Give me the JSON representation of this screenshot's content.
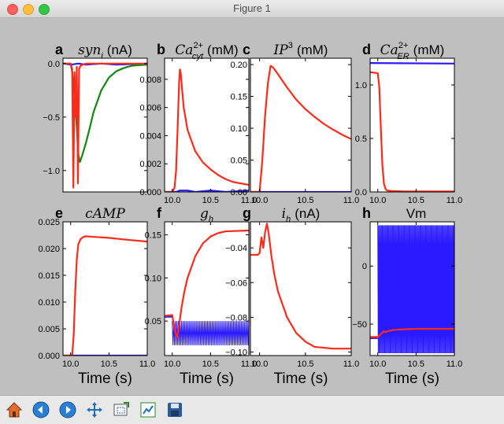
{
  "window": {
    "title": "Figure 1"
  },
  "toolbar": {
    "buttons": [
      {
        "icon": "home-icon"
      },
      {
        "icon": "back-icon"
      },
      {
        "icon": "forward-icon"
      },
      {
        "icon": "pan-icon"
      },
      {
        "icon": "zoom-icon"
      },
      {
        "icon": "subplots-icon"
      },
      {
        "icon": "save-icon"
      }
    ]
  },
  "colors": {
    "red": "#ff2a1a",
    "blue": "#2a1aff",
    "green": "#118811",
    "figure_bg": "#bfbfbf"
  },
  "chart_data": [
    {
      "type": "line",
      "panel_letter": "a",
      "title_math": [
        "syn",
        "i",
        ""
      ],
      "title_unit": "(nA)",
      "xlim": [
        9.9,
        11.0
      ],
      "ylim": [
        -1.2,
        0.05
      ],
      "xticks": [],
      "xtick_labels": [],
      "yticks": [
        0.0,
        -0.5,
        -1.0
      ],
      "ytick_labels": [
        "0.0",
        "−0.5",
        "−1.0"
      ],
      "xlabel": "",
      "series": [
        {
          "color": "blue",
          "x": [
            9.9,
            10.0,
            10.1,
            10.2,
            10.4,
            10.6,
            11.0
          ],
          "y": [
            0.0,
            -0.01,
            0.0,
            -0.01,
            0.0,
            -0.01,
            0.0
          ]
        },
        {
          "color": "green",
          "x": [
            9.9,
            10.0,
            10.02,
            10.05,
            10.08,
            10.1,
            10.12,
            10.15,
            10.2,
            10.25,
            10.3,
            10.4,
            10.5,
            10.6,
            10.7,
            10.8,
            11.0
          ],
          "y": [
            0.0,
            0.0,
            -0.08,
            -0.3,
            -0.6,
            -0.85,
            -0.92,
            -0.86,
            -0.74,
            -0.6,
            -0.45,
            -0.25,
            -0.13,
            -0.07,
            -0.04,
            -0.02,
            -0.01
          ]
        },
        {
          "color": "red",
          "x": [
            9.9,
            10.0,
            10.02,
            10.035,
            10.05,
            10.065,
            10.08,
            10.095,
            10.11,
            10.13,
            10.16,
            10.2,
            10.3,
            10.4,
            10.6,
            11.0
          ],
          "y": [
            0.0,
            0.0,
            -0.05,
            -1.16,
            -0.08,
            -0.5,
            -0.03,
            -1.12,
            -0.05,
            -0.02,
            -0.01,
            0.0,
            0.0,
            0.0,
            0.0,
            0.0
          ]
        }
      ]
    },
    {
      "type": "line",
      "panel_letter": "b",
      "title_math": [
        "Ca",
        "cyt",
        "2+"
      ],
      "title_unit": "(mM)",
      "xlim": [
        9.9,
        11.0
      ],
      "ylim": [
        0.0,
        0.0095
      ],
      "xticks": [
        10.0,
        10.5,
        11.0
      ],
      "xtick_labels": [
        "10.0",
        "10.5",
        "11.0"
      ],
      "yticks": [
        0.0,
        0.002,
        0.004,
        0.006,
        0.008
      ],
      "ytick_labels": [
        "0.000",
        "0.002",
        "0.004",
        "0.006",
        "0.008"
      ],
      "xlabel": "",
      "series": [
        {
          "color": "blue",
          "x": [
            9.9,
            10.05,
            10.1,
            10.2,
            10.3,
            10.5,
            10.7,
            11.0
          ],
          "y": [
            0.0,
            0.0,
            0.0001,
            0.0001,
            0.0,
            0.0001,
            0.0,
            0.0001
          ]
        },
        {
          "color": "red",
          "x": [
            9.9,
            10.0,
            10.03,
            10.05,
            10.07,
            10.09,
            10.1,
            10.11,
            10.13,
            10.15,
            10.2,
            10.3,
            10.4,
            10.5,
            10.6,
            10.7,
            10.8,
            11.0
          ],
          "y": [
            0.0,
            0.0,
            0.0003,
            0.0015,
            0.0045,
            0.0078,
            0.0087,
            0.0085,
            0.0072,
            0.006,
            0.0044,
            0.0029,
            0.0021,
            0.0016,
            0.0012,
            0.0009,
            0.0007,
            0.0005
          ]
        }
      ]
    },
    {
      "type": "line",
      "panel_letter": "c",
      "title_math": [
        "IP",
        "",
        "3"
      ],
      "title_unit": "(mM)",
      "xlim": [
        9.9,
        11.0
      ],
      "ylim": [
        0.0,
        0.21
      ],
      "xticks": [
        10.0,
        10.5,
        11.0
      ],
      "xtick_labels": [
        "10.0",
        "10.5",
        "11.0"
      ],
      "yticks": [
        0.0,
        0.05,
        0.1,
        0.15,
        0.2
      ],
      "ytick_labels": [
        "0.00",
        "0.05",
        "0.10",
        "0.15",
        "0.20"
      ],
      "xlabel": "",
      "series": [
        {
          "color": "blue",
          "x": [
            9.9,
            11.0
          ],
          "y": [
            0.0,
            0.0
          ]
        },
        {
          "color": "red",
          "x": [
            9.9,
            10.0,
            10.03,
            10.06,
            10.09,
            10.12,
            10.15,
            10.2,
            10.3,
            10.4,
            10.5,
            10.6,
            10.7,
            10.8,
            10.9,
            11.0
          ],
          "y": [
            0.0,
            0.0,
            0.05,
            0.12,
            0.17,
            0.198,
            0.195,
            0.185,
            0.164,
            0.145,
            0.13,
            0.118,
            0.107,
            0.098,
            0.09,
            0.083
          ]
        }
      ]
    },
    {
      "type": "line",
      "panel_letter": "d",
      "title_math": [
        "Ca",
        "ER",
        "2+"
      ],
      "title_unit": "(mM)",
      "xlim": [
        9.9,
        11.0
      ],
      "ylim": [
        0.0,
        1.25
      ],
      "xticks": [
        10.0,
        10.5,
        11.0
      ],
      "xtick_labels": [
        "10.0",
        "10.5",
        "11.0"
      ],
      "yticks": [
        0.0,
        0.5,
        1.0
      ],
      "ytick_labels": [
        "0.0",
        "0.5",
        "1.0"
      ],
      "xlabel": "",
      "series": [
        {
          "color": "blue",
          "x": [
            9.9,
            11.0
          ],
          "y": [
            1.205,
            1.2
          ]
        },
        {
          "color": "red",
          "x": [
            9.9,
            10.0,
            10.02,
            10.04,
            10.06,
            10.08,
            10.1,
            10.12,
            10.15,
            10.2,
            10.3,
            11.0
          ],
          "y": [
            1.12,
            1.11,
            0.98,
            0.6,
            0.25,
            0.08,
            0.03,
            0.015,
            0.01,
            0.008,
            0.006,
            0.005
          ]
        }
      ]
    },
    {
      "type": "line",
      "panel_letter": "e",
      "title_math": [
        "cAMP",
        "",
        ""
      ],
      "title_unit": "",
      "xlim": [
        9.9,
        11.0
      ],
      "ylim": [
        0.0,
        0.025
      ],
      "xticks": [
        10.0,
        10.5,
        11.0
      ],
      "xtick_labels": [
        "10.0",
        "10.5",
        "11.0"
      ],
      "yticks": [
        0.0,
        0.005,
        0.01,
        0.015,
        0.02,
        0.025
      ],
      "ytick_labels": [
        "0.000",
        "0.005",
        "0.010",
        "0.015",
        "0.020",
        "0.025"
      ],
      "xlabel": "Time (s)",
      "series": [
        {
          "color": "blue",
          "x": [
            9.9,
            11.0
          ],
          "y": [
            0.0,
            0.0
          ]
        },
        {
          "color": "red",
          "x": [
            9.9,
            10.02,
            10.04,
            10.06,
            10.08,
            10.1,
            10.13,
            10.17,
            10.2,
            10.3,
            10.5,
            10.7,
            11.0
          ],
          "y": [
            0.0,
            0.0,
            0.004,
            0.012,
            0.018,
            0.0208,
            0.0218,
            0.0222,
            0.0223,
            0.0222,
            0.022,
            0.0217,
            0.0213
          ]
        }
      ]
    },
    {
      "type": "line",
      "panel_letter": "f",
      "title_math": [
        "g",
        "h",
        ""
      ],
      "title_unit": "",
      "xlim": [
        9.9,
        11.0
      ],
      "ylim": [
        0.01,
        0.165
      ],
      "xticks": [
        10.0,
        10.5,
        11.0
      ],
      "xtick_labels": [
        "10.0",
        "10.5",
        "11.0"
      ],
      "yticks": [
        0.05,
        0.1,
        0.15
      ],
      "ytick_labels": [
        "0.05",
        "0.10",
        "0.15"
      ],
      "xlabel": "Time (s)",
      "oscillation": {
        "series": "blue",
        "x_start": 10.0,
        "x_end": 11.0,
        "period": 0.02,
        "upper": 0.05,
        "lower": 0.022
      },
      "series": [
        {
          "color": "blue",
          "x": [
            9.9,
            10.0
          ],
          "y": [
            0.055,
            0.055
          ]
        },
        {
          "color": "red",
          "x": [
            9.9,
            10.0,
            10.03,
            10.06,
            10.09,
            10.12,
            10.16,
            10.2,
            10.3,
            10.4,
            10.5,
            10.6,
            10.7,
            11.0
          ],
          "y": [
            0.056,
            0.057,
            0.04,
            0.03,
            0.045,
            0.065,
            0.085,
            0.1,
            0.125,
            0.14,
            0.148,
            0.152,
            0.154,
            0.155
          ]
        }
      ]
    },
    {
      "type": "line",
      "panel_letter": "g",
      "title_math": [
        "i",
        "h",
        ""
      ],
      "title_unit": "(nA)",
      "xlim": [
        9.9,
        11.0
      ],
      "ylim": [
        -0.102,
        -0.025
      ],
      "xticks": [
        10.0,
        10.5,
        11.0
      ],
      "xtick_labels": [
        "10.0",
        "10.5",
        "11.0"
      ],
      "yticks": [
        -0.04,
        -0.06,
        -0.08,
        -0.1
      ],
      "ytick_labels": [
        "−0.04",
        "−0.06",
        "−0.08",
        "−0.10"
      ],
      "xlabel": "Time (s)",
      "series": [
        {
          "color": "red",
          "x": [
            9.9,
            9.98,
            10.0,
            10.02,
            10.04,
            10.06,
            10.08,
            10.1,
            10.13,
            10.16,
            10.2,
            10.3,
            10.4,
            10.5,
            10.6,
            10.8,
            11.0
          ],
          "y": [
            -0.044,
            -0.044,
            -0.043,
            -0.034,
            -0.04,
            -0.031,
            -0.026,
            -0.032,
            -0.045,
            -0.055,
            -0.065,
            -0.08,
            -0.089,
            -0.094,
            -0.097,
            -0.098,
            -0.098
          ]
        }
      ]
    },
    {
      "type": "line",
      "panel_letter": "h",
      "title_math": [
        "",
        "",
        ""
      ],
      "title_unit": "Vm",
      "xlim": [
        9.9,
        11.0
      ],
      "ylim": [
        -77,
        38
      ],
      "xticks": [
        10.0,
        10.5,
        11.0
      ],
      "xtick_labels": [
        "10.0",
        "10.5",
        "11.0"
      ],
      "yticks": [
        0,
        -50
      ],
      "ytick_labels": [
        "0",
        "−50"
      ],
      "xlabel": "Time (s)",
      "oscillation": {
        "series": "blue",
        "x_start": 10.0,
        "x_end": 11.0,
        "period": 0.012,
        "upper": 35,
        "lower": -75
      },
      "series": [
        {
          "color": "blue",
          "x": [
            9.9,
            10.0
          ],
          "y": [
            -62,
            -62
          ]
        },
        {
          "color": "red",
          "x": [
            9.9,
            10.0,
            10.05,
            10.08,
            10.1,
            10.13,
            10.2,
            10.3,
            10.5,
            11.0
          ],
          "y": [
            -61,
            -61,
            -58,
            -56,
            -57,
            -56,
            -55,
            -54.5,
            -54,
            -54
          ]
        }
      ]
    }
  ]
}
